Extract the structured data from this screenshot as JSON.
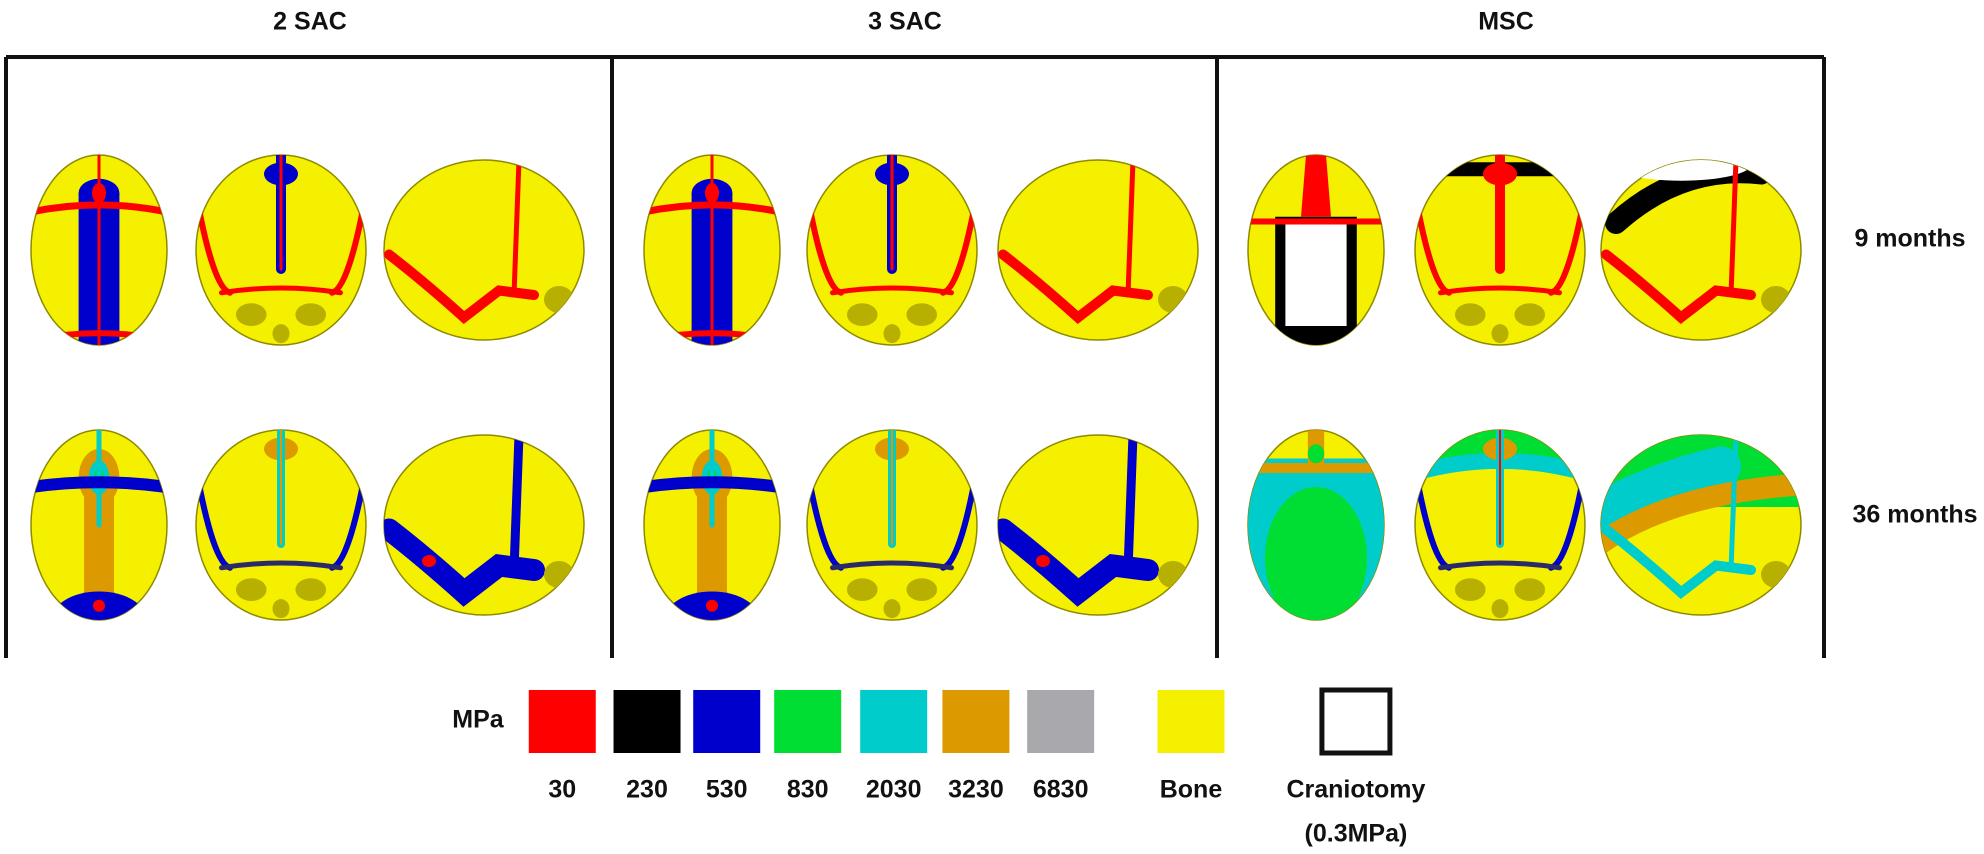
{
  "columns": [
    "2 SAC",
    "3 SAC",
    "MSC"
  ],
  "rows": [
    "9 months",
    "36 months"
  ],
  "legend": {
    "title": "MPa",
    "items": [
      {
        "label": "30",
        "color": "#ff0000"
      },
      {
        "label": "230",
        "color": "#000000"
      },
      {
        "label": "530",
        "color": "#0000cc"
      },
      {
        "label": "830",
        "color": "#00dd33"
      },
      {
        "label": "2030",
        "color": "#00cccc"
      },
      {
        "label": "3230",
        "color": "#dd9900"
      },
      {
        "label": "6830",
        "color": "#a9a9ad"
      },
      {
        "label": "Bone",
        "color": "#f5f000"
      },
      {
        "label": "Craniotomy",
        "sublabel": "(0.3MPa)",
        "color": "#ffffff"
      }
    ]
  }
}
